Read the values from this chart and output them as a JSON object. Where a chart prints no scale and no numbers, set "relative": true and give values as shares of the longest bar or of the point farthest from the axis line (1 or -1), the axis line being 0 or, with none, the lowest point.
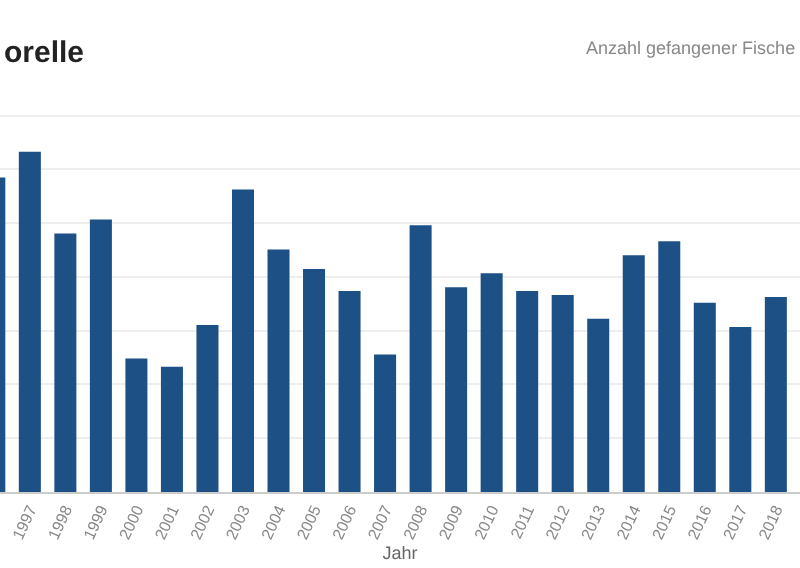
{
  "chart_data": {
    "type": "bar",
    "title": "orelle",
    "subtitle": "Anzahl gefangener Fische",
    "xlabel": "Jahr",
    "categories": [
      null,
      "1997",
      "1998",
      "1999",
      "2000",
      "2001",
      "2002",
      "2003",
      "2004",
      "2005",
      "2006",
      "2007",
      "2008",
      "2009",
      "2010",
      "2011",
      "2012",
      "2013",
      "2014",
      "2015",
      "2016",
      "2017",
      "2018"
    ],
    "values": [
      0.924,
      1,
      0.76,
      0.801,
      0.392,
      0.368,
      0.491,
      0.889,
      0.713,
      0.655,
      0.591,
      0.404,
      0.784,
      0.602,
      0.643,
      0.591,
      0.579,
      0.509,
      0.696,
      0.737,
      0.556,
      0.485,
      0.573
    ],
    "color": "#1d5085",
    "relative": true,
    "grid": "y",
    "legend": false
  }
}
